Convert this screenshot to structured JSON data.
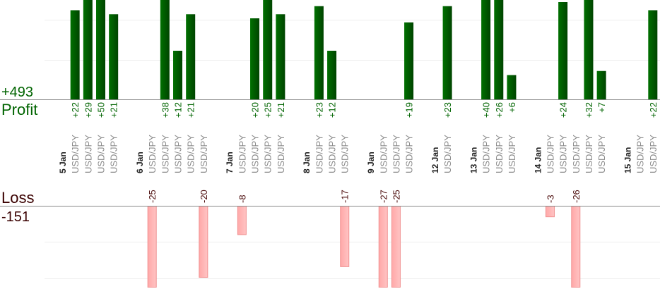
{
  "chart_data": {
    "type": "bar",
    "title": "",
    "profit_total_label": "+493",
    "profit_label": "Profit",
    "loss_label": "Loss",
    "loss_total_label": "-151",
    "colors": {
      "profit": "#006400",
      "profit_dark": "#004a00",
      "loss": "#ffb0b0",
      "loss_border": "#f09090",
      "loss_text": "#4a0a0a",
      "axis": "#888888",
      "grid": "#eeeeee"
    },
    "groups": [
      {
        "date": "5 Jan",
        "trades": [
          {
            "symbol": "USD/JPY",
            "value": 22
          },
          {
            "symbol": "USD/JPY",
            "value": 29
          },
          {
            "symbol": "USD/JPY",
            "value": 50
          },
          {
            "symbol": "USD/JPY",
            "value": 21
          }
        ]
      },
      {
        "date": "6 Jan",
        "trades": [
          {
            "symbol": "USD/JPY",
            "value": -25
          },
          {
            "symbol": "USD/JPY",
            "value": 38
          },
          {
            "symbol": "USD/JPY",
            "value": 12
          },
          {
            "symbol": "USD/JPY",
            "value": 21
          },
          {
            "symbol": "USD/JPY",
            "value": -20
          }
        ]
      },
      {
        "date": "7 Jan",
        "trades": [
          {
            "symbol": "USD/JPY",
            "value": -8
          },
          {
            "symbol": "USD/JPY",
            "value": 20
          },
          {
            "symbol": "USD/JPY",
            "value": 25
          },
          {
            "symbol": "USD/JPY",
            "value": 21
          }
        ]
      },
      {
        "date": "8 Jan",
        "trades": [
          {
            "symbol": "USD/JPY",
            "value": 23
          },
          {
            "symbol": "USD/JPY",
            "value": 12
          },
          {
            "symbol": "USD/JPY",
            "value": -17
          }
        ]
      },
      {
        "date": "9 Jan",
        "trades": [
          {
            "symbol": "USD/JPY",
            "value": -27
          },
          {
            "symbol": "USD/JPY",
            "value": -25
          },
          {
            "symbol": "USD/JPY",
            "value": 19
          }
        ]
      },
      {
        "date": "12 Jan",
        "trades": [
          {
            "symbol": "USD/JPY",
            "value": 23
          }
        ]
      },
      {
        "date": "13 Jan",
        "trades": [
          {
            "symbol": "USD/JPY",
            "value": 40
          },
          {
            "symbol": "USD/JPY",
            "value": 26
          },
          {
            "symbol": "USD/JPY",
            "value": 6
          }
        ]
      },
      {
        "date": "14 Jan",
        "trades": [
          {
            "symbol": "USD/JPY",
            "value": -3
          },
          {
            "symbol": "USD/JPY",
            "value": 24
          },
          {
            "symbol": "USD/JPY",
            "value": -26
          },
          {
            "symbol": "USD/JPY",
            "value": 32
          },
          {
            "symbol": "USD/JPY",
            "value": 7
          }
        ]
      },
      {
        "date": "15 Jan",
        "trades": [
          {
            "symbol": "USD/JPY",
            "value": null
          },
          {
            "symbol": "USD/JPY",
            "value": 22
          }
        ]
      }
    ]
  }
}
